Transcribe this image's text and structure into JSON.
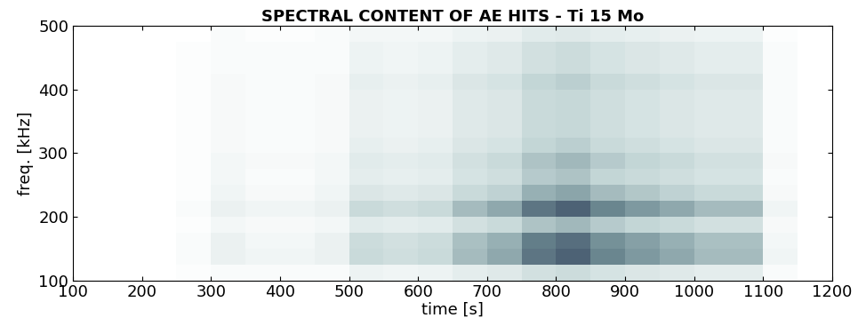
{
  "chart_data": {
    "type": "heatmap",
    "title": "SPECTRAL CONTENT OF AE HITS - Ti 15 Mo",
    "xlabel": "time [s]",
    "ylabel": "freq. [kHz]",
    "x_edges": [
      100,
      150,
      200,
      250,
      300,
      350,
      400,
      450,
      500,
      550,
      600,
      650,
      700,
      750,
      800,
      850,
      900,
      950,
      1000,
      1050,
      1100,
      1150,
      1200
    ],
    "y_edges": [
      100,
      125,
      150,
      175,
      200,
      225,
      250,
      275,
      300,
      325,
      350,
      375,
      400,
      425,
      450,
      475,
      500
    ],
    "cells": [
      [
        0,
        0,
        0,
        0.01,
        0.02,
        0.02,
        0.02,
        0.02,
        0.06,
        0.05,
        0.06,
        0.09,
        0.11,
        0.15,
        0.17,
        0.14,
        0.12,
        0.11,
        0.09,
        0.09,
        0.02,
        0
      ],
      [
        0,
        0,
        0,
        0.02,
        0.07,
        0.05,
        0.05,
        0.07,
        0.18,
        0.16,
        0.18,
        0.27,
        0.32,
        0.45,
        0.5,
        0.41,
        0.36,
        0.32,
        0.27,
        0.27,
        0.05,
        0
      ],
      [
        0,
        0,
        0,
        0.02,
        0.07,
        0.04,
        0.04,
        0.07,
        0.17,
        0.15,
        0.17,
        0.26,
        0.3,
        0.43,
        0.47,
        0.38,
        0.34,
        0.3,
        0.26,
        0.26,
        0.04,
        0
      ],
      [
        0,
        0,
        0,
        0.01,
        0.04,
        0.03,
        0.03,
        0.04,
        0.1,
        0.09,
        0.1,
        0.15,
        0.18,
        0.25,
        0.28,
        0.23,
        0.2,
        0.18,
        0.15,
        0.15,
        0.03,
        0
      ],
      [
        0,
        0,
        0,
        0.02,
        0.07,
        0.05,
        0.05,
        0.07,
        0.18,
        0.16,
        0.18,
        0.27,
        0.32,
        0.45,
        0.5,
        0.41,
        0.36,
        0.32,
        0.27,
        0.27,
        0.05,
        0
      ],
      [
        0,
        0,
        0,
        0.01,
        0.05,
        0.03,
        0.03,
        0.05,
        0.12,
        0.11,
        0.12,
        0.18,
        0.21,
        0.3,
        0.33,
        0.27,
        0.24,
        0.21,
        0.18,
        0.18,
        0.03,
        0
      ],
      [
        0,
        0,
        0,
        0.01,
        0.04,
        0.02,
        0.02,
        0.04,
        0.09,
        0.08,
        0.09,
        0.14,
        0.16,
        0.23,
        0.25,
        0.2,
        0.18,
        0.16,
        0.14,
        0.14,
        0.02,
        0
      ],
      [
        0,
        0,
        0,
        0.01,
        0.04,
        0.03,
        0.03,
        0.04,
        0.1,
        0.09,
        0.1,
        0.15,
        0.18,
        0.25,
        0.28,
        0.23,
        0.2,
        0.18,
        0.15,
        0.15,
        0.03,
        0
      ],
      [
        0,
        0,
        0,
        0.01,
        0.03,
        0.02,
        0.02,
        0.03,
        0.08,
        0.07,
        0.08,
        0.12,
        0.14,
        0.2,
        0.22,
        0.18,
        0.16,
        0.14,
        0.12,
        0.12,
        0.02,
        0
      ],
      [
        0,
        0,
        0,
        0.01,
        0.03,
        0.02,
        0.02,
        0.03,
        0.07,
        0.06,
        0.07,
        0.11,
        0.12,
        0.18,
        0.19,
        0.16,
        0.14,
        0.12,
        0.11,
        0.11,
        0.02,
        0
      ],
      [
        0,
        0,
        0,
        0.01,
        0.03,
        0.02,
        0.02,
        0.03,
        0.07,
        0.06,
        0.07,
        0.11,
        0.12,
        0.18,
        0.19,
        0.16,
        0.14,
        0.12,
        0.11,
        0.11,
        0.02,
        0
      ],
      [
        0,
        0,
        0,
        0.01,
        0.03,
        0.02,
        0.02,
        0.03,
        0.07,
        0.06,
        0.07,
        0.11,
        0.12,
        0.18,
        0.19,
        0.16,
        0.14,
        0.12,
        0.11,
        0.11,
        0.02,
        0
      ],
      [
        0,
        0,
        0,
        0.01,
        0.03,
        0.02,
        0.02,
        0.03,
        0.08,
        0.07,
        0.08,
        0.12,
        0.14,
        0.2,
        0.22,
        0.18,
        0.16,
        0.14,
        0.12,
        0.12,
        0.02,
        0
      ],
      [
        0,
        0,
        0,
        0.01,
        0.02,
        0.02,
        0.02,
        0.02,
        0.06,
        0.05,
        0.06,
        0.09,
        0.11,
        0.15,
        0.17,
        0.14,
        0.12,
        0.11,
        0.09,
        0.09,
        0.02,
        0
      ],
      [
        0,
        0,
        0,
        0.01,
        0.02,
        0.02,
        0.02,
        0.02,
        0.06,
        0.05,
        0.06,
        0.09,
        0.11,
        0.15,
        0.17,
        0.14,
        0.12,
        0.11,
        0.09,
        0.09,
        0.02,
        0
      ],
      [
        0,
        0,
        0,
        0,
        0.02,
        0.01,
        0.01,
        0.02,
        0.04,
        0.04,
        0.04,
        0.06,
        0.07,
        0.1,
        0.11,
        0.09,
        0.08,
        0.07,
        0.06,
        0.06,
        0.01,
        0
      ]
    ],
    "zlim": [
      0,
      0.6
    ],
    "xlim": [
      100,
      1200
    ],
    "xticks": [
      100,
      200,
      300,
      400,
      500,
      600,
      700,
      800,
      900,
      1000,
      1100,
      1200
    ],
    "ylim": [
      100,
      500
    ],
    "yticks": [
      100,
      200,
      300,
      400,
      500
    ]
  }
}
